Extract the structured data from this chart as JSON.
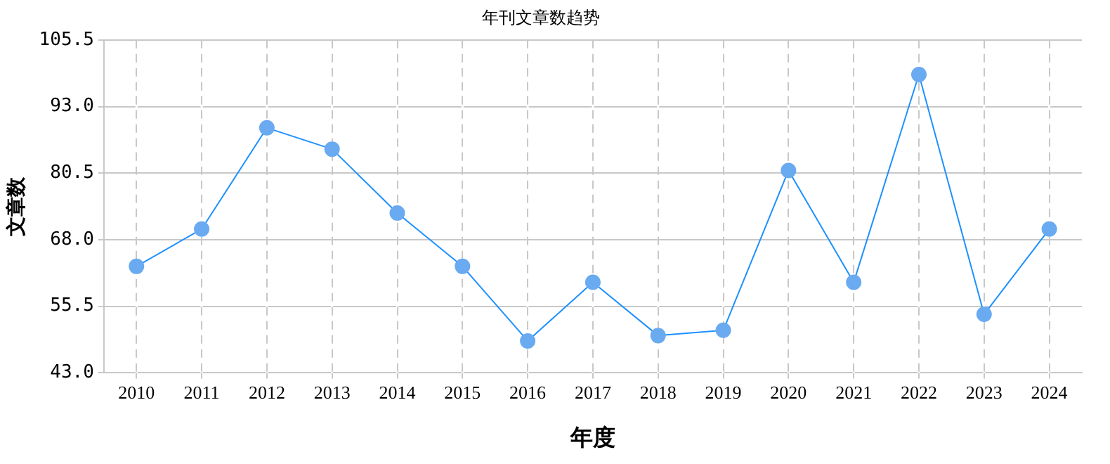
{
  "chart_data": {
    "type": "line",
    "title": "年刊文章数趋势",
    "xlabel": "年度",
    "ylabel": "文章数",
    "categories": [
      "2010",
      "2011",
      "2012",
      "2013",
      "2014",
      "2015",
      "2016",
      "2017",
      "2018",
      "2019",
      "2020",
      "2021",
      "2022",
      "2023",
      "2024"
    ],
    "series": [
      {
        "color": "#1e90ff",
        "values": [
          63,
          70,
          89,
          85,
          73,
          63,
          49,
          60,
          50,
          51,
          81,
          60,
          99,
          54,
          70
        ]
      }
    ],
    "ylim": [
      43,
      105.5
    ],
    "yticks": [
      {
        "value": 43,
        "label": "43.0"
      },
      {
        "value": 55.5,
        "label": "55.5"
      },
      {
        "value": 68,
        "label": "68.0"
      },
      {
        "value": 80.5,
        "label": "80.5"
      },
      {
        "value": 93,
        "label": "93.0"
      },
      {
        "value": 105.5,
        "label": "105.5"
      }
    ],
    "grid": true,
    "legend": false,
    "marker": "circle",
    "line_style": "solid"
  }
}
